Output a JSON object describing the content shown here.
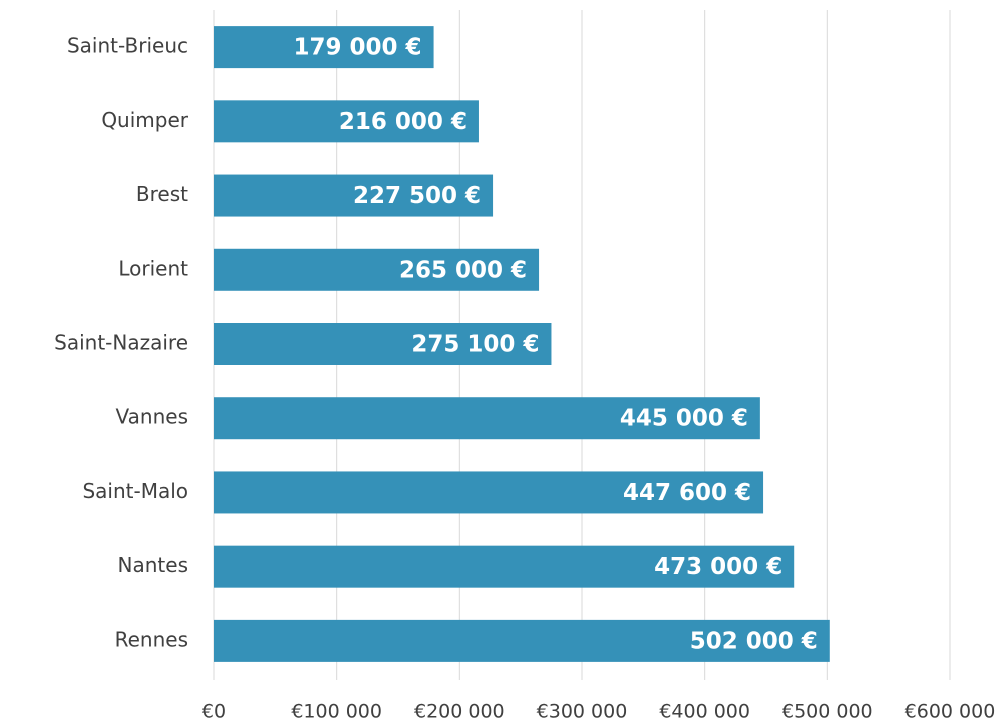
{
  "chart_data": {
    "type": "bar",
    "orientation": "horizontal",
    "categories": [
      "Saint-Brieuc",
      "Quimper",
      "Brest",
      "Lorient",
      "Saint-Nazaire",
      "Vannes",
      "Saint-Malo",
      "Nantes",
      "Rennes"
    ],
    "values": [
      179000,
      216000,
      227500,
      265000,
      275100,
      445000,
      447600,
      473000,
      502000
    ],
    "value_labels": [
      "179 000 €",
      "216 000 €",
      "227 500 €",
      "265 000 €",
      "275 100 €",
      "445 000 €",
      "447 600 €",
      "473 000 €",
      "502 000 €"
    ],
    "color": "#3591b8",
    "xlim": [
      0,
      600000
    ],
    "xticks": [
      {
        "value": 0,
        "label": "€0"
      },
      {
        "value": 100000,
        "label": "€100 000"
      },
      {
        "value": 200000,
        "label": "€200 000"
      },
      {
        "value": 300000,
        "label": "€300 000"
      },
      {
        "value": 400000,
        "label": "€400 000"
      },
      {
        "value": 500000,
        "label": "€500 000"
      },
      {
        "value": 600000,
        "label": "€600 000"
      }
    ],
    "grid": true
  }
}
